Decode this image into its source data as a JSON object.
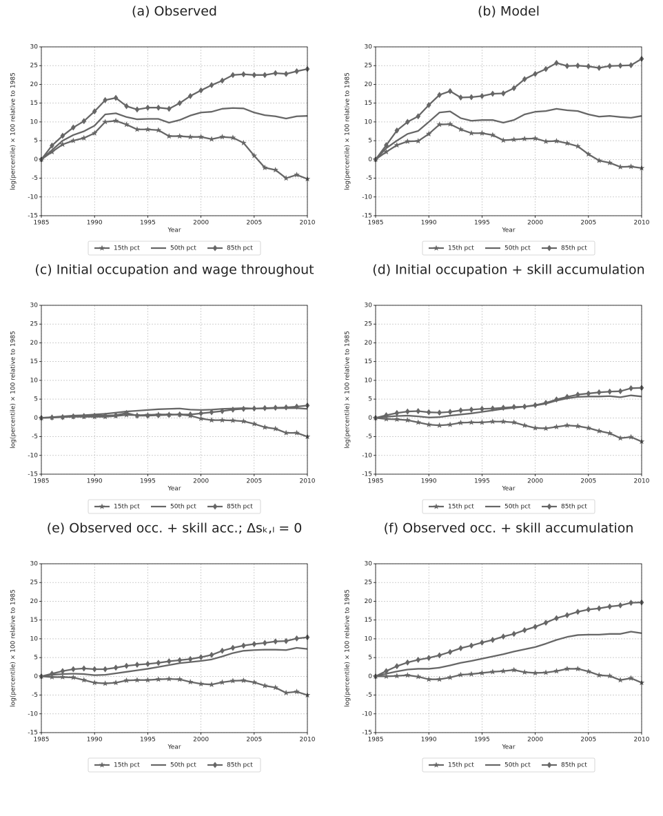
{
  "chart_data": [
    {
      "type": "line",
      "title": "(a) Observed",
      "xlabel": "Year",
      "ylabel": "log(percentile) × 100 relative to 1985",
      "x": [
        1985,
        1986,
        1987,
        1988,
        1989,
        1990,
        1991,
        1992,
        1993,
        1994,
        1995,
        1996,
        1997,
        1998,
        1999,
        2000,
        2001,
        2002,
        2003,
        2004,
        2005,
        2006,
        2007,
        2008,
        2009,
        2010
      ],
      "xlim": [
        1985,
        2010
      ],
      "xticks": [
        1985,
        1990,
        1995,
        2000,
        2005,
        2010
      ],
      "ylim": [
        -15,
        30
      ],
      "yticks": [
        -15,
        -10,
        -5,
        0,
        5,
        10,
        15,
        20,
        25,
        30
      ],
      "grid": true,
      "legend": "below",
      "series": [
        {
          "name": "15th pct",
          "color": "#666666",
          "marker": "star",
          "values": [
            0,
            2,
            4,
            5,
            5.7,
            7,
            10,
            10.3,
            9.3,
            8,
            8,
            7.8,
            6.2,
            6.2,
            6,
            6,
            5.4,
            6,
            5.8,
            4.4,
            1,
            -2.2,
            -2.8,
            -5,
            -4.1,
            -5.2
          ]
        },
        {
          "name": "50th pct",
          "color": "#666666",
          "marker": "none",
          "values": [
            0,
            2.5,
            5,
            6.5,
            7.5,
            9,
            12,
            12.3,
            11.3,
            10.7,
            10.8,
            10.8,
            9.8,
            10.5,
            11.7,
            12.5,
            12.7,
            13.5,
            13.7,
            13.6,
            12.5,
            11.8,
            11.5,
            10.9,
            11.5,
            11.6
          ]
        },
        {
          "name": "85th pct",
          "color": "#666666",
          "marker": "diamond",
          "values": [
            0,
            3.7,
            6.3,
            8.5,
            10.2,
            12.8,
            15.8,
            16.4,
            14.2,
            13.3,
            13.8,
            13.8,
            13.5,
            15,
            16.9,
            18.4,
            19.8,
            21,
            22.5,
            22.7,
            22.5,
            22.5,
            23,
            22.8,
            23.5,
            24.1
          ]
        }
      ]
    },
    {
      "type": "line",
      "title": "(b) Model",
      "xlabel": "Year",
      "ylabel": "log(percentile) × 100 relative to 1985",
      "x": [
        1985,
        1986,
        1987,
        1988,
        1989,
        1990,
        1991,
        1992,
        1993,
        1994,
        1995,
        1996,
        1997,
        1998,
        1999,
        2000,
        2001,
        2002,
        2003,
        2004,
        2005,
        2006,
        2007,
        2008,
        2009,
        2010
      ],
      "xlim": [
        1985,
        2010
      ],
      "xticks": [
        1985,
        1990,
        1995,
        2000,
        2005,
        2010
      ],
      "ylim": [
        -15,
        30
      ],
      "yticks": [
        -15,
        -10,
        -5,
        0,
        5,
        10,
        15,
        20,
        25,
        30
      ],
      "grid": true,
      "legend": "below",
      "series": [
        {
          "name": "15th pct",
          "color": "#666666",
          "marker": "star",
          "values": [
            0,
            2,
            3.8,
            4.8,
            4.9,
            6.8,
            9.3,
            9.4,
            8,
            7,
            7,
            6.5,
            5.1,
            5.3,
            5.5,
            5.6,
            4.8,
            4.9,
            4.3,
            3.5,
            1.4,
            -0.3,
            -0.9,
            -2,
            -1.9,
            -2.3
          ]
        },
        {
          "name": "50th pct",
          "color": "#666666",
          "marker": "none",
          "values": [
            0,
            3,
            5,
            6.8,
            7.6,
            10,
            12.5,
            12.8,
            11,
            10.3,
            10.5,
            10.5,
            9.8,
            10.5,
            12,
            12.7,
            12.9,
            13.5,
            13.1,
            12.9,
            12,
            11.4,
            11.6,
            11.3,
            11.1,
            11.6
          ]
        },
        {
          "name": "85th pct",
          "color": "#666666",
          "marker": "diamond",
          "values": [
            0,
            3.8,
            7.7,
            10,
            11.5,
            14.5,
            17.2,
            18.2,
            16.5,
            16.6,
            16.9,
            17.5,
            17.6,
            19,
            21.4,
            22.8,
            24.1,
            25.7,
            24.9,
            25,
            24.8,
            24.4,
            24.9,
            25,
            25.1,
            26.8
          ]
        }
      ]
    },
    {
      "type": "line",
      "title": "(c) Initial occupation and wage throughout",
      "xlabel": "Year",
      "ylabel": "log(percentile) × 100 relative to 1985",
      "x": [
        1985,
        1986,
        1987,
        1988,
        1989,
        1990,
        1991,
        1992,
        1993,
        1994,
        1995,
        1996,
        1997,
        1998,
        1999,
        2000,
        2001,
        2002,
        2003,
        2004,
        2005,
        2006,
        2007,
        2008,
        2009,
        2010
      ],
      "xlim": [
        1985,
        2010
      ],
      "xticks": [
        1985,
        1990,
        1995,
        2000,
        2005,
        2010
      ],
      "ylim": [
        -15,
        30
      ],
      "yticks": [
        -15,
        -10,
        -5,
        0,
        5,
        10,
        15,
        20,
        25,
        30
      ],
      "grid": true,
      "legend": "below",
      "series": [
        {
          "name": "15th pct",
          "color": "#666666",
          "marker": "star",
          "values": [
            0,
            0.1,
            0.2,
            0.3,
            0.3,
            0.3,
            0.3,
            0.5,
            0.8,
            0.7,
            0.8,
            0.9,
            0.9,
            0.9,
            0.6,
            -0.2,
            -0.6,
            -0.6,
            -0.7,
            -0.9,
            -1.6,
            -2.5,
            -2.9,
            -4,
            -4,
            -5
          ]
        },
        {
          "name": "50th pct",
          "color": "#666666",
          "marker": "none",
          "values": [
            0,
            0.2,
            0.4,
            0.6,
            0.7,
            0.9,
            1.1,
            1.4,
            1.7,
            1.9,
            2.1,
            2.3,
            2.4,
            2.5,
            2.2,
            2.1,
            2.2,
            2.4,
            2.5,
            2.6,
            2.5,
            2.5,
            2.6,
            2.6,
            2.6,
            2.4
          ]
        },
        {
          "name": "85th pct",
          "color": "#666666",
          "marker": "diamond",
          "values": [
            0,
            0.1,
            0.2,
            0.4,
            0.5,
            0.6,
            0.6,
            0.7,
            1.3,
            0.6,
            0.6,
            0.7,
            0.8,
            0.9,
            0.9,
            1.2,
            1.5,
            1.8,
            2.2,
            2.4,
            2.5,
            2.6,
            2.7,
            2.8,
            3,
            3.3
          ]
        }
      ]
    },
    {
      "type": "line",
      "title": "(d) Initial occupation + skill accumulation",
      "xlabel": "Year",
      "ylabel": "log(percentile) × 100 relative to 1985",
      "x": [
        1985,
        1986,
        1987,
        1988,
        1989,
        1990,
        1991,
        1992,
        1993,
        1994,
        1995,
        1996,
        1997,
        1998,
        1999,
        2000,
        2001,
        2002,
        2003,
        2004,
        2005,
        2006,
        2007,
        2008,
        2009,
        2010
      ],
      "xlim": [
        1985,
        2010
      ],
      "xticks": [
        1985,
        1990,
        1995,
        2000,
        2005,
        2010
      ],
      "ylim": [
        -15,
        30
      ],
      "yticks": [
        -15,
        -10,
        -5,
        0,
        5,
        10,
        15,
        20,
        25,
        30
      ],
      "grid": true,
      "legend": "below",
      "series": [
        {
          "name": "15th pct",
          "color": "#666666",
          "marker": "star",
          "values": [
            0,
            -0.3,
            -0.4,
            -0.6,
            -1.2,
            -1.8,
            -2,
            -1.8,
            -1.3,
            -1.2,
            -1.2,
            -1,
            -1,
            -1.2,
            -2,
            -2.7,
            -2.8,
            -2.4,
            -2,
            -2.2,
            -2.7,
            -3.5,
            -4.1,
            -5.4,
            -5.1,
            -6.3
          ]
        },
        {
          "name": "50th pct",
          "color": "#666666",
          "marker": "none",
          "values": [
            0,
            0.3,
            0.5,
            0.6,
            0.4,
            0.1,
            0.2,
            0.6,
            0.9,
            1.2,
            1.6,
            2,
            2.4,
            2.7,
            3,
            3.3,
            3.8,
            4.6,
            5.2,
            5.6,
            5.7,
            5.7,
            5.8,
            5.5,
            6,
            5.7
          ]
        },
        {
          "name": "85th pct",
          "color": "#666666",
          "marker": "diamond",
          "values": [
            0,
            0.7,
            1.3,
            1.7,
            1.8,
            1.5,
            1.4,
            1.6,
            2,
            2.2,
            2.4,
            2.5,
            2.7,
            2.9,
            3,
            3.4,
            4,
            4.9,
            5.6,
            6.2,
            6.5,
            6.8,
            7,
            7.1,
            7.9,
            8
          ]
        }
      ]
    },
    {
      "type": "line",
      "title": "(e) Observed occ. + skill acc.; Δsₖ,ₗ = 0",
      "xlabel": "Year",
      "ylabel": "log(percentile) × 100 relative to 1985",
      "x": [
        1985,
        1986,
        1987,
        1988,
        1989,
        1990,
        1991,
        1992,
        1993,
        1994,
        1995,
        1996,
        1997,
        1998,
        1999,
        2000,
        2001,
        2002,
        2003,
        2004,
        2005,
        2006,
        2007,
        2008,
        2009,
        2010
      ],
      "xlim": [
        1985,
        2010
      ],
      "xticks": [
        1985,
        1990,
        1995,
        2000,
        2005,
        2010
      ],
      "ylim": [
        -15,
        30
      ],
      "yticks": [
        -15,
        -10,
        -5,
        0,
        5,
        10,
        15,
        20,
        25,
        30
      ],
      "grid": true,
      "legend": "below",
      "series": [
        {
          "name": "15th pct",
          "color": "#666666",
          "marker": "star",
          "values": [
            0,
            -0.2,
            -0.2,
            -0.3,
            -1,
            -1.7,
            -1.9,
            -1.7,
            -1.1,
            -1,
            -1,
            -0.8,
            -0.7,
            -0.8,
            -1.5,
            -2,
            -2.2,
            -1.6,
            -1.2,
            -1.1,
            -1.6,
            -2.5,
            -3,
            -4.4,
            -4.1,
            -5
          ]
        },
        {
          "name": "50th pct",
          "color": "#666666",
          "marker": "none",
          "values": [
            0,
            0.4,
            0.6,
            0.7,
            0.6,
            0.3,
            0.4,
            0.8,
            1.2,
            1.6,
            2,
            2.5,
            3,
            3.5,
            3.8,
            4.1,
            4.5,
            5.3,
            6.2,
            6.8,
            7,
            7.1,
            7.1,
            7,
            7.6,
            7.3
          ]
        },
        {
          "name": "85th pct",
          "color": "#666666",
          "marker": "diamond",
          "values": [
            0,
            0.7,
            1.4,
            1.9,
            2.1,
            1.9,
            1.9,
            2.3,
            2.8,
            3.1,
            3.3,
            3.6,
            4,
            4.3,
            4.6,
            5.1,
            5.7,
            6.8,
            7.6,
            8.2,
            8.6,
            8.9,
            9.3,
            9.4,
            10.1,
            10.4
          ]
        }
      ]
    },
    {
      "type": "line",
      "title": "(f) Observed occ. + skill accumulation",
      "xlabel": "Year",
      "ylabel": "log(percentile) × 100 relative to 1985",
      "x": [
        1985,
        1986,
        1987,
        1988,
        1989,
        1990,
        1991,
        1992,
        1993,
        1994,
        1995,
        1996,
        1997,
        1998,
        1999,
        2000,
        2001,
        2002,
        2003,
        2004,
        2005,
        2006,
        2007,
        2008,
        2009,
        2010
      ],
      "xlim": [
        1985,
        2010
      ],
      "xticks": [
        1985,
        1990,
        1995,
        2000,
        2005,
        2010
      ],
      "ylim": [
        -15,
        30
      ],
      "yticks": [
        -15,
        -10,
        -5,
        0,
        5,
        10,
        15,
        20,
        25,
        30
      ],
      "grid": true,
      "legend": "below",
      "series": [
        {
          "name": "15th pct",
          "color": "#666666",
          "marker": "star",
          "values": [
            0,
            0,
            0.1,
            0.3,
            -0.1,
            -0.8,
            -0.8,
            -0.3,
            0.4,
            0.6,
            0.9,
            1.2,
            1.4,
            1.7,
            1.1,
            0.9,
            1,
            1.4,
            2,
            2,
            1.3,
            0.3,
            0.1,
            -1,
            -0.5,
            -1.7
          ]
        },
        {
          "name": "50th pct",
          "color": "#666666",
          "marker": "none",
          "values": [
            0,
            0.7,
            1.3,
            1.8,
            2,
            2,
            2.3,
            2.9,
            3.6,
            4.1,
            4.7,
            5.3,
            5.9,
            6.6,
            7.2,
            7.8,
            8.7,
            9.7,
            10.5,
            11,
            11.1,
            11.1,
            11.3,
            11.3,
            11.9,
            11.5
          ]
        },
        {
          "name": "85th pct",
          "color": "#666666",
          "marker": "diamond",
          "values": [
            0,
            1.4,
            2.7,
            3.7,
            4.4,
            4.9,
            5.6,
            6.5,
            7.5,
            8.2,
            9,
            9.7,
            10.6,
            11.3,
            12.3,
            13.2,
            14.3,
            15.5,
            16.3,
            17.2,
            17.8,
            18.1,
            18.6,
            18.9,
            19.6,
            19.7
          ]
        }
      ]
    }
  ]
}
